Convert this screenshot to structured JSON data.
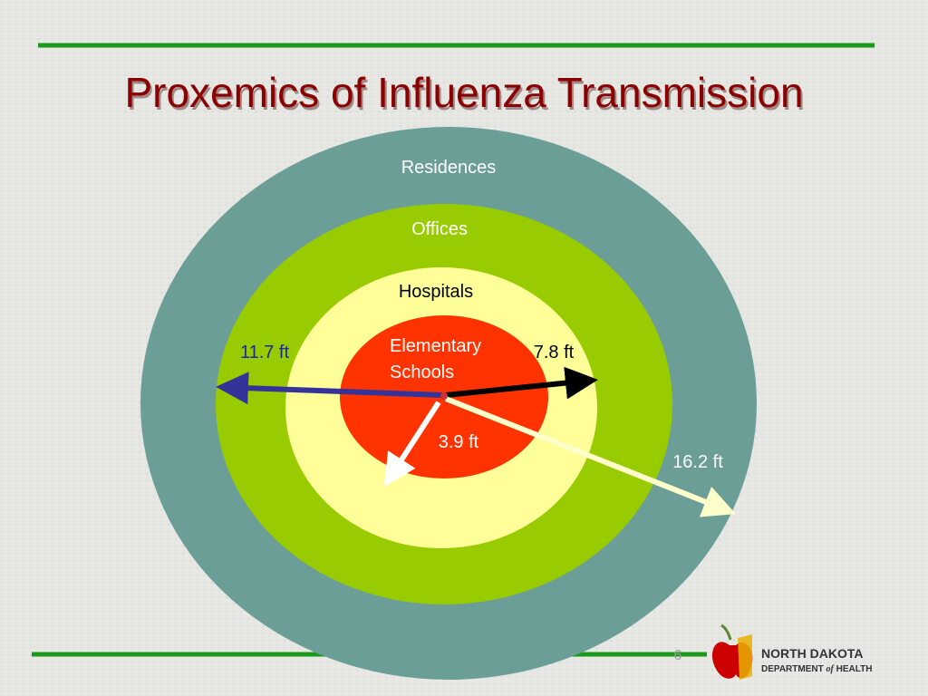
{
  "title": "Proxemics of Influenza Transmission",
  "rings": [
    {
      "label": "Residences"
    },
    {
      "label": "Offices"
    },
    {
      "label": "Hospitals"
    },
    {
      "label": [
        "Elementary",
        "Schools"
      ]
    }
  ],
  "distances": [
    {
      "label": "11.7 ft"
    },
    {
      "label": "7.8 ft"
    },
    {
      "label": "3.9 ft"
    },
    {
      "label": "16.2 ft"
    }
  ],
  "footer": {
    "page_number": "6",
    "logo": {
      "line1": "NORTH DAKOTA",
      "line2": [
        "DEPARTMENT",
        "of",
        "HEALTH"
      ]
    }
  }
}
